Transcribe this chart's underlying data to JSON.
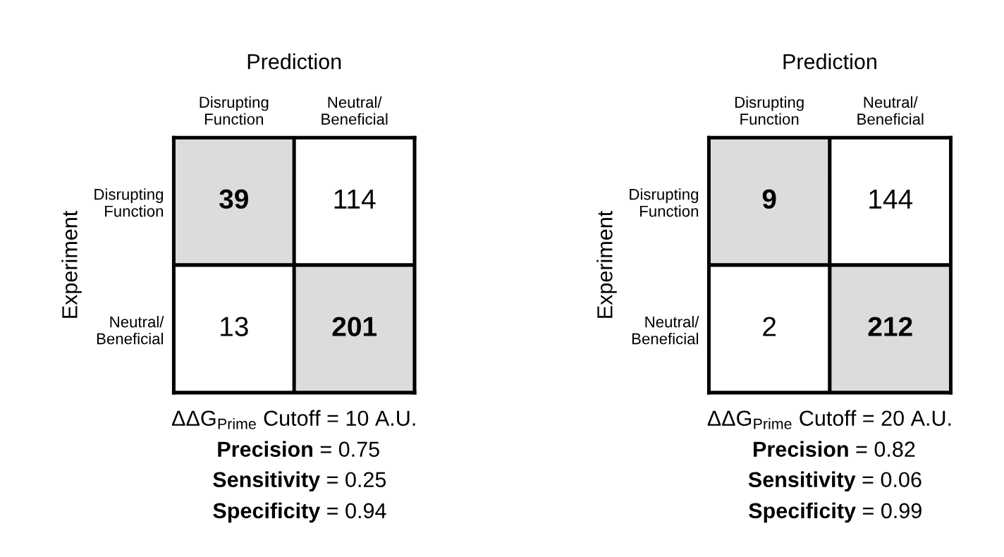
{
  "chart_data": [
    {
      "type": "heatmap",
      "xlabel": "Prediction",
      "ylabel": "Experiment",
      "categories": [
        "Disrupting\nFunction",
        "Neutral/\nBeneficial"
      ],
      "y_categories": [
        "Disrupting\nFunction",
        "Neutral/\nBeneficial"
      ],
      "cells": [
        [
          39,
          114
        ],
        [
          13,
          201
        ]
      ],
      "colors": [
        [
          "#dcdcdc",
          "#ffffff"
        ],
        [
          "#ffffff",
          "#dcdcdc"
        ]
      ],
      "data_labels": true,
      "annotations": [
        "ΔΔG$_{Prime}$ Cutoff = 10 A.U.",
        "Precision = 0.75",
        "Sensitivity = 0.25",
        "Specificity = 0.94"
      ]
    },
    {
      "type": "heatmap",
      "xlabel": "Prediction",
      "ylabel": "Experiment",
      "categories": [
        "Disrupting\nFunction",
        "Neutral/\nBeneficial"
      ],
      "y_categories": [
        "Disrupting\nFunction",
        "Neutral/\nBeneficial"
      ],
      "cells": [
        [
          9,
          144
        ],
        [
          2,
          212
        ]
      ],
      "colors": [
        [
          "#dcdcdc",
          "#ffffff"
        ],
        [
          "#ffffff",
          "#dcdcdc"
        ]
      ],
      "data_labels": true,
      "annotations": [
        "ΔΔG$_{Prime}$ Cutoff = 20 A.U.",
        "Precision = 0.82",
        "Sensitivity = 0.06",
        "Specificity = 0.99"
      ]
    }
  ]
}
